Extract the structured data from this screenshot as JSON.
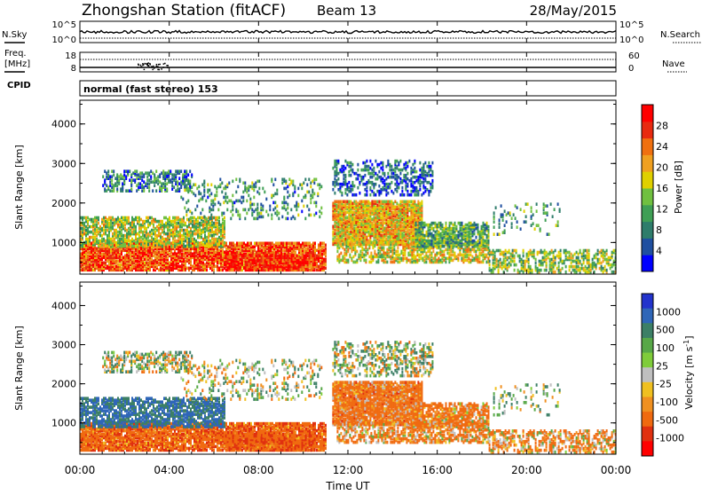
{
  "header": {
    "title": "Zhongshan Station (fitACF)",
    "beam": "Beam 13",
    "date": "28/May/2015"
  },
  "noise_panel": {
    "left_label": "N.Sky",
    "right_label": "N.Search",
    "left_ticks": [
      "10^5",
      "10^0"
    ],
    "right_ticks": [
      "10^5",
      "10^0"
    ]
  },
  "freq_panel": {
    "left_label_line1": "Freq.",
    "left_label_line2": "[MHz]",
    "right_label": "Nave",
    "left_ticks": [
      "18",
      "8"
    ],
    "right_ticks": [
      "60",
      "0"
    ]
  },
  "cpid_panel": {
    "label": "CPID",
    "mode": "normal (fast stereo) 153"
  },
  "colors": {
    "power_scale": [
      "#0000ff",
      "#1f4fa0",
      "#2e7d6b",
      "#3f9f55",
      "#70c040",
      "#e0d000",
      "#f0a020",
      "#f07010",
      "#e82a10",
      "#ff0000"
    ],
    "velocity_scale": [
      "#2233cc",
      "#2f66b8",
      "#3c7f66",
      "#58a848",
      "#7fcc3a",
      "#bfbfbf",
      "#f0c020",
      "#f09020",
      "#f06a10",
      "#e03010",
      "#ff0000"
    ]
  },
  "chart_data": [
    {
      "type": "heatmap",
      "name": "power-panel",
      "ylabel": "Slant Range [km]",
      "yticks": [
        "1000",
        "2000",
        "3000",
        "4000"
      ],
      "ylim": [
        200,
        4600
      ],
      "xticks": [
        "00:00",
        "04:00",
        "08:00",
        "12:00",
        "16:00",
        "20:00",
        "00:00"
      ],
      "xlim_hours": [
        0,
        24
      ],
      "colorbar_label": "Power [dB]",
      "colorbar_ticks": [
        "4",
        "8",
        "12",
        "16",
        "20",
        "24",
        "28"
      ],
      "colorbar_range": [
        0,
        32
      ]
    },
    {
      "type": "heatmap",
      "name": "velocity-panel",
      "ylabel": "Slant Range [km]",
      "yticks": [
        "1000",
        "2000",
        "3000",
        "4000"
      ],
      "ylim": [
        200,
        4600
      ],
      "xticks": [
        "00:00",
        "04:00",
        "08:00",
        "12:00",
        "16:00",
        "20:00",
        "00:00"
      ],
      "xlim_hours": [
        0,
        24
      ],
      "xlabel": "Time UT",
      "colorbar_label": "Velocity [m s^-1]",
      "colorbar_ticks": [
        "1000",
        "500",
        "100",
        "25",
        "-25",
        "-100",
        "-500",
        "-1000"
      ]
    }
  ]
}
